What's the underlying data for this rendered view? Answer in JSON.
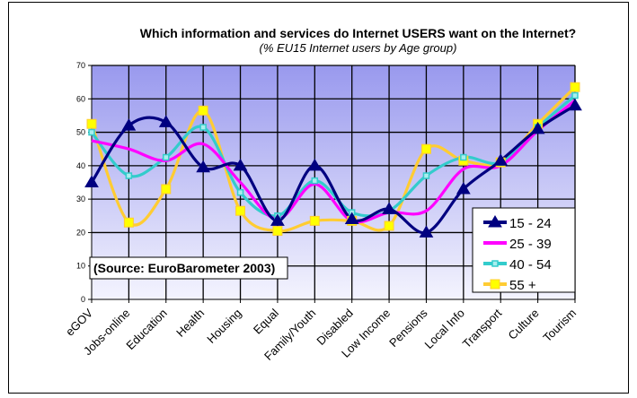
{
  "chart_data": {
    "type": "line",
    "title": "Which information and services do Internet USERS want on the Internet?",
    "subtitle": "(% EU15 Internet users by Age group)",
    "xlabel": "",
    "ylabel": "",
    "ylim": [
      0,
      70
    ],
    "yticks": [
      0,
      10,
      20,
      30,
      40,
      50,
      60,
      70
    ],
    "grid": true,
    "smoothed": true,
    "legend_position": "bottom-right",
    "annotation": "(Source:  EuroBarometer 2003)",
    "categories": [
      "eGOV",
      "Jobs-online",
      "Education",
      "Health",
      "Housing",
      "Equal",
      "Family/Youth",
      "Disabled",
      "Low Income",
      "Pensions",
      "Local Info",
      "Transport",
      "Culture",
      "Tourism"
    ],
    "series": [
      {
        "name": "15 - 24",
        "color": "#000080",
        "marker": "triangle",
        "values": [
          35,
          52,
          53,
          39.5,
          40,
          23.5,
          40,
          24,
          27,
          20,
          33,
          41.5,
          51,
          58
        ]
      },
      {
        "name": "25 - 39",
        "color": "#ff00ff",
        "marker": "none",
        "values": [
          47.5,
          45,
          41.5,
          46.5,
          35,
          24,
          34.5,
          23.5,
          26,
          26.5,
          39,
          40,
          50.5,
          59.5
        ]
      },
      {
        "name": "40 - 54",
        "color": "#33cccc",
        "marker": "small-square",
        "values": [
          50,
          37,
          42.5,
          51.5,
          32,
          25,
          35.5,
          26,
          26.5,
          37,
          42.5,
          41,
          51.5,
          61
        ]
      },
      {
        "name": "55 +",
        "color": "#ffcc33",
        "marker_fill": "#ffff00",
        "marker": "square",
        "values": [
          52.5,
          23,
          33,
          56.5,
          26.5,
          20.5,
          23.5,
          23.5,
          22,
          45,
          41.5,
          41,
          52.5,
          63.5
        ]
      }
    ]
  }
}
